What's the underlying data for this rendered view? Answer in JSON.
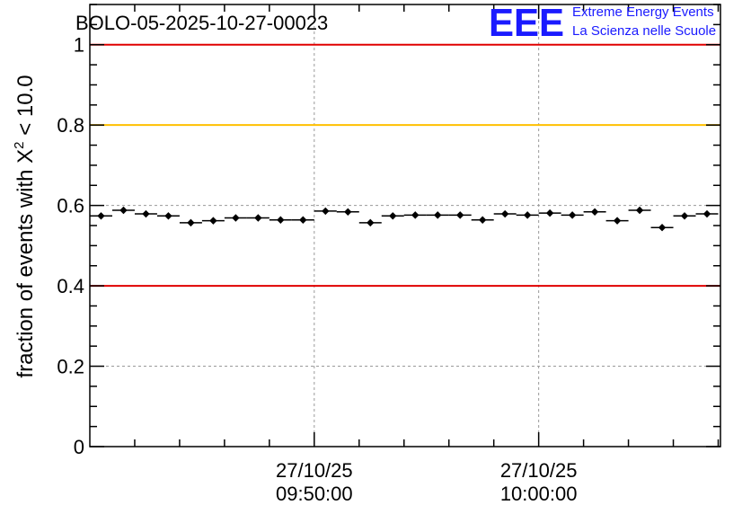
{
  "chart_data": {
    "type": "scatter",
    "title": "BOLO-05-2025-10-27-00023",
    "ylabel_prefix": "fraction of events with ",
    "ylabel_symbol": "X",
    "ylabel_superscript": "2",
    "ylabel_suffix": " < 10.0",
    "xlabel": "",
    "ylim": [
      0,
      1.1
    ],
    "yticks": [
      0,
      0.2,
      0.4,
      0.6,
      0.8,
      1
    ],
    "ytick_labels": [
      "0",
      "0.2",
      "0.4",
      "0.6",
      "0.8",
      "1"
    ],
    "x_range_minutes": [
      0,
      28.1
    ],
    "x_major_ticks": [
      {
        "minute": 10,
        "date": "27/10/25",
        "time": "09:50:00"
      },
      {
        "minute": 20,
        "date": "27/10/25",
        "time": "10:00:00"
      }
    ],
    "x_minor_tick_step_minutes": 2,
    "grid": true,
    "reference_lines": [
      {
        "y": 1.0,
        "color": "#e00000"
      },
      {
        "y": 0.8,
        "color": "#ffc000"
      },
      {
        "y": 0.4,
        "color": "#e00000"
      }
    ],
    "points_x_halfwidth_minutes": 0.5,
    "points_y_error": 0.007,
    "points": [
      {
        "x": 0.5,
        "y": 0.574
      },
      {
        "x": 1.5,
        "y": 0.588
      },
      {
        "x": 2.5,
        "y": 0.579
      },
      {
        "x": 3.5,
        "y": 0.574
      },
      {
        "x": 4.5,
        "y": 0.557
      },
      {
        "x": 5.5,
        "y": 0.562
      },
      {
        "x": 6.5,
        "y": 0.569
      },
      {
        "x": 7.5,
        "y": 0.569
      },
      {
        "x": 8.5,
        "y": 0.564
      },
      {
        "x": 9.5,
        "y": 0.564
      },
      {
        "x": 10.5,
        "y": 0.586
      },
      {
        "x": 11.5,
        "y": 0.584
      },
      {
        "x": 12.5,
        "y": 0.557
      },
      {
        "x": 13.5,
        "y": 0.574
      },
      {
        "x": 14.5,
        "y": 0.576
      },
      {
        "x": 15.5,
        "y": 0.576
      },
      {
        "x": 16.5,
        "y": 0.576
      },
      {
        "x": 17.5,
        "y": 0.564
      },
      {
        "x": 18.5,
        "y": 0.579
      },
      {
        "x": 19.5,
        "y": 0.576
      },
      {
        "x": 20.5,
        "y": 0.581
      },
      {
        "x": 21.5,
        "y": 0.576
      },
      {
        "x": 22.5,
        "y": 0.584
      },
      {
        "x": 23.5,
        "y": 0.562
      },
      {
        "x": 24.5,
        "y": 0.588
      },
      {
        "x": 25.5,
        "y": 0.545
      },
      {
        "x": 26.5,
        "y": 0.574
      },
      {
        "x": 27.5,
        "y": 0.579
      }
    ]
  },
  "logo": {
    "letters": "EEE",
    "line1": "Extreme Energy Events",
    "line2": "La Scienza nelle Scuole",
    "color": "#1a1aff"
  }
}
